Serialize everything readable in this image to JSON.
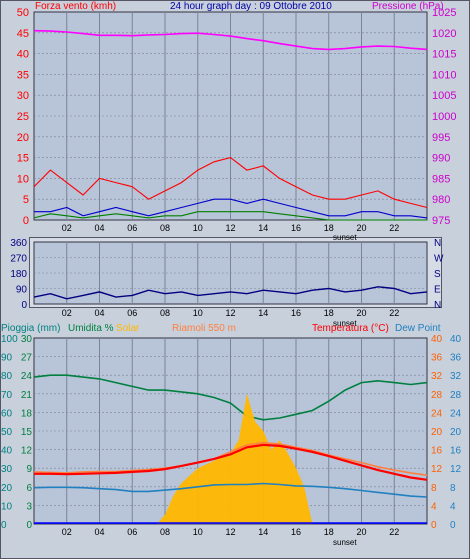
{
  "chart_data": [
    {
      "type": "line",
      "panel": "wind-pressure",
      "title": "24 hour graph day : 09 Ottobre 2010",
      "left_label": "Forza vento (kmh)",
      "right_label": "Pressione (hPa)",
      "left_ylim": [
        0,
        50
      ],
      "left_ticks": [
        "0",
        "5",
        "10",
        "15",
        "20",
        "25",
        "30",
        "35",
        "40",
        "45",
        "50"
      ],
      "right_ylim": [
        975,
        1025
      ],
      "right_ticks": [
        "975",
        "980",
        "985",
        "990",
        "995",
        "1000",
        "1005",
        "1010",
        "1015",
        "1020",
        "1025"
      ],
      "x_ticks": [
        "02",
        "04",
        "06",
        "08",
        "10",
        "12",
        "14",
        "16",
        "18",
        "20",
        "22"
      ],
      "sunset_label": "sunset",
      "sunset_hour": 17.6,
      "series": [
        {
          "color": "#ff00ff",
          "axis": "right",
          "x": [
            0,
            1,
            2,
            3,
            4,
            5,
            6,
            7,
            8,
            9,
            10,
            11,
            12,
            13,
            14,
            15,
            16,
            17,
            18,
            19,
            20,
            21,
            22,
            23,
            24
          ],
          "values": [
            1020.5,
            1020.4,
            1020.2,
            1019.8,
            1019.4,
            1019.4,
            1019.3,
            1019.5,
            1019.6,
            1019.8,
            1019.9,
            1019.6,
            1019.2,
            1018.6,
            1018.1,
            1017.4,
            1016.8,
            1016.2,
            1016.0,
            1016.2,
            1016.6,
            1016.8,
            1016.7,
            1016.3,
            1016.0
          ]
        },
        {
          "color": "#ff0000",
          "axis": "left",
          "x": [
            0,
            1,
            2,
            3,
            4,
            5,
            6,
            7,
            8,
            9,
            10,
            11,
            12,
            13,
            14,
            15,
            16,
            17,
            18,
            19,
            20,
            21,
            22,
            23,
            24
          ],
          "values": [
            8,
            12,
            9,
            6,
            10,
            9,
            8,
            5,
            7,
            9,
            12,
            14,
            15,
            12,
            13,
            10,
            8,
            6,
            5,
            5,
            6,
            7,
            5,
            4,
            3
          ]
        },
        {
          "color": "#0000cc",
          "axis": "left",
          "x": [
            0,
            1,
            2,
            3,
            4,
            5,
            6,
            7,
            8,
            9,
            10,
            11,
            12,
            13,
            14,
            15,
            16,
            17,
            18,
            19,
            20,
            21,
            22,
            23,
            24
          ],
          "values": [
            2,
            2,
            3,
            1,
            2,
            3,
            2,
            1,
            2,
            3,
            4,
            5,
            5,
            4,
            5,
            4,
            3,
            2,
            1,
            1,
            2,
            2,
            1,
            1,
            0.5
          ]
        },
        {
          "color": "#008000",
          "axis": "left",
          "x": [
            0,
            1,
            2,
            3,
            4,
            5,
            6,
            7,
            8,
            9,
            10,
            11,
            12,
            13,
            14,
            15,
            16,
            17,
            18,
            19,
            20,
            21,
            22,
            23,
            24
          ],
          "values": [
            0.5,
            1.5,
            1,
            0.5,
            1,
            1.5,
            1,
            0.5,
            1,
            1,
            2,
            2,
            2,
            2,
            2,
            1.5,
            1,
            0.5,
            0,
            0,
            0,
            0,
            0,
            0,
            0
          ]
        }
      ]
    },
    {
      "type": "line",
      "panel": "wind-direction",
      "left_ticks": [
        "0",
        "90",
        "180",
        "270",
        "360"
      ],
      "right_ticks": [
        "N",
        "E",
        "S",
        "W",
        "N"
      ],
      "ylim": [
        0,
        360
      ],
      "x_ticks": [
        "02",
        "04",
        "06",
        "08",
        "10",
        "12",
        "14",
        "16",
        "18",
        "20",
        "22"
      ],
      "sunset_label": "sunset",
      "series": [
        {
          "color": "#000080",
          "x": [
            0,
            1,
            2,
            3,
            4,
            5,
            6,
            7,
            8,
            9,
            10,
            11,
            12,
            13,
            14,
            15,
            16,
            17,
            18,
            19,
            20,
            21,
            22,
            23,
            24
          ],
          "values": [
            40,
            60,
            30,
            50,
            70,
            40,
            50,
            80,
            60,
            70,
            50,
            60,
            70,
            60,
            80,
            70,
            60,
            80,
            90,
            70,
            80,
            100,
            90,
            60,
            70
          ]
        }
      ]
    },
    {
      "type": "line",
      "panel": "rain-humidity-solar-temperature",
      "labels": {
        "rain": "Pioggia (mm)",
        "humidity": "Umidita %",
        "solar": "Solar",
        "reference": "Riamoli 550 m",
        "temperature": "Temperatura (°C)",
        "dewpoint": "Dew Point"
      },
      "rain_ticks": [
        "0",
        "10",
        "20",
        "30",
        "40",
        "50",
        "60",
        "70",
        "80",
        "90",
        "100"
      ],
      "humidity_ticks": [
        "0",
        "3",
        "6",
        "9",
        "12",
        "15",
        "18",
        "21",
        "24",
        "27",
        "30"
      ],
      "temp_ticks_1": [
        "0",
        "4",
        "8",
        "12",
        "16",
        "20",
        "24",
        "28",
        "32",
        "36",
        "40"
      ],
      "temp_ticks_2": [
        "0",
        "4",
        "8",
        "12",
        "16",
        "20",
        "24",
        "28",
        "32",
        "36",
        "40"
      ],
      "left_ylim": [
        0,
        100
      ],
      "right_ylim": [
        0,
        40
      ],
      "x_ticks": [
        "02",
        "04",
        "06",
        "08",
        "10",
        "12",
        "14",
        "16",
        "18",
        "20",
        "22"
      ],
      "sunset_label": "sunset",
      "series": [
        {
          "color": "#008040",
          "axis": "left",
          "x": [
            0,
            1,
            2,
            3,
            4,
            5,
            6,
            7,
            8,
            9,
            10,
            11,
            12,
            13,
            14,
            15,
            16,
            17,
            18,
            19,
            20,
            21,
            22,
            23,
            24
          ],
          "values": [
            79,
            80,
            80,
            79,
            78,
            76,
            74,
            72,
            72,
            71,
            70,
            68,
            65,
            58,
            56,
            57,
            59,
            61,
            66,
            72,
            76,
            77,
            76,
            75,
            76
          ]
        },
        {
          "color": "#ffb800",
          "axis": "left",
          "fill": true,
          "x": [
            0,
            7.5,
            8,
            8.5,
            9,
            9.5,
            10,
            10.5,
            11,
            11.5,
            12,
            12.5,
            13,
            13.5,
            14,
            14.5,
            15,
            15.5,
            16,
            16.5,
            17,
            24
          ],
          "values": [
            0,
            0,
            5,
            15,
            22,
            26,
            30,
            32,
            34,
            36,
            38,
            45,
            70,
            55,
            50,
            40,
            45,
            38,
            30,
            20,
            0,
            0
          ]
        },
        {
          "color": "#ff8040",
          "axis": "right",
          "x": [
            0,
            1,
            2,
            3,
            4,
            5,
            6,
            7,
            8,
            9,
            10,
            11,
            12,
            13,
            14,
            15,
            16,
            17,
            18,
            19,
            20,
            21,
            22,
            23,
            24
          ],
          "values": [
            11.2,
            11.1,
            11.0,
            11.2,
            11.3,
            11.3,
            11.5,
            11.7,
            12.0,
            12.5,
            13.2,
            14.0,
            15.5,
            17.0,
            17.5,
            17.2,
            16.5,
            15.8,
            14.8,
            14.0,
            13.2,
            12.3,
            11.6,
            11.0,
            10.5
          ]
        },
        {
          "color": "#ff0000",
          "axis": "right",
          "x": [
            0,
            1,
            2,
            3,
            4,
            5,
            6,
            7,
            8,
            9,
            10,
            11,
            12,
            13,
            14,
            15,
            16,
            17,
            18,
            19,
            20,
            21,
            22,
            23,
            24
          ],
          "values": [
            10.8,
            10.8,
            10.7,
            10.8,
            10.9,
            11.0,
            11.2,
            11.4,
            11.8,
            12.5,
            13.2,
            14.0,
            15.0,
            16.5,
            17.0,
            16.8,
            16.2,
            15.5,
            14.6,
            13.6,
            12.6,
            11.6,
            10.8,
            10.0,
            9.5
          ]
        },
        {
          "color": "#2080c0",
          "axis": "right",
          "x": [
            0,
            1,
            2,
            3,
            4,
            5,
            6,
            7,
            8,
            9,
            10,
            11,
            12,
            13,
            14,
            15,
            16,
            17,
            18,
            19,
            20,
            21,
            22,
            23,
            24
          ],
          "values": [
            7.8,
            7.9,
            7.9,
            7.8,
            7.6,
            7.4,
            7.0,
            7.0,
            7.3,
            7.6,
            8.0,
            8.4,
            8.5,
            8.5,
            8.7,
            8.5,
            8.2,
            8.1,
            7.9,
            7.6,
            7.2,
            6.8,
            6.4,
            6.0,
            5.8
          ]
        },
        {
          "color": "#0000ff",
          "axis": "left",
          "x": [
            0,
            24
          ],
          "values": [
            0.5,
            0.5
          ]
        }
      ]
    }
  ]
}
